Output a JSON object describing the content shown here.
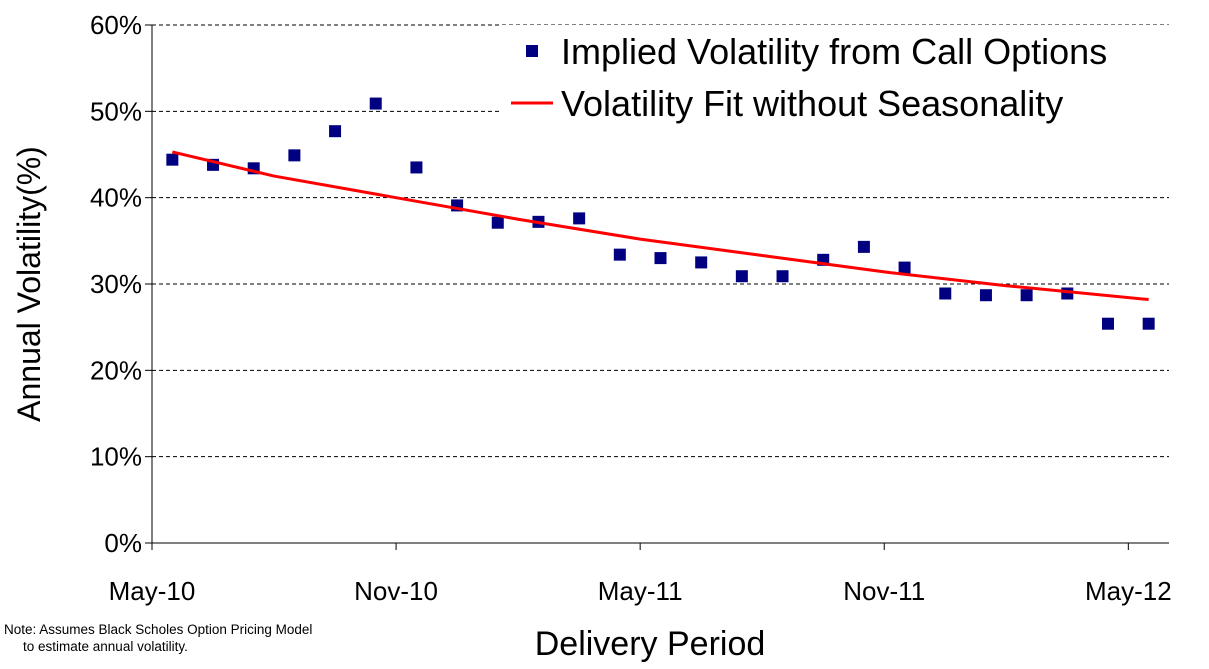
{
  "chart_data": {
    "type": "scatter_line",
    "xlabel": "Delivery Period",
    "ylabel": "Annual Volatility(%)",
    "note": [
      "Note: Assumes Black Scholes Option Pricing Model",
      "to estimate annual volatility."
    ],
    "xlim": [
      0,
      25
    ],
    "xticks": [
      {
        "value": 0,
        "label": "May-10"
      },
      {
        "value": 6,
        "label": "Nov-10"
      },
      {
        "value": 12,
        "label": "May-11"
      },
      {
        "value": 18,
        "label": "Nov-11"
      },
      {
        "value": 24,
        "label": "May-12"
      }
    ],
    "ylim": [
      0,
      60
    ],
    "yticks": [
      {
        "value": 0,
        "label": "0%"
      },
      {
        "value": 10,
        "label": "10%"
      },
      {
        "value": 20,
        "label": "20%"
      },
      {
        "value": 30,
        "label": "30%"
      },
      {
        "value": 40,
        "label": "40%"
      },
      {
        "value": 50,
        "label": "50%"
      },
      {
        "value": 60,
        "label": "60%"
      }
    ],
    "grid": true,
    "legend": "top-right",
    "series": [
      {
        "name": "Implied Volatility from Call Options",
        "kind": "markers",
        "color": "#000080",
        "x": [
          0.5,
          1.5,
          2.5,
          3.5,
          4.5,
          5.5,
          6.5,
          7.5,
          8.5,
          9.5,
          10.5,
          11.5,
          12.5,
          13.5,
          14.5,
          15.5,
          16.5,
          17.5,
          18.5,
          19.5,
          20.5,
          21.5,
          22.5,
          23.5,
          24.5
        ],
        "values": [
          44.4,
          43.8,
          43.4,
          44.9,
          47.7,
          50.9,
          43.5,
          39.1,
          37.1,
          37.2,
          37.6,
          33.4,
          33.0,
          32.5,
          30.9,
          30.9,
          32.8,
          34.3,
          31.9,
          28.9,
          28.7,
          28.7,
          28.9,
          25.4,
          25.4
        ]
      },
      {
        "name": "Volatility Fit without Seasonality",
        "kind": "line",
        "color": "#ff0000",
        "x": [
          0.5,
          3,
          6,
          9,
          12,
          15,
          18,
          21,
          24.5
        ],
        "values": [
          45.3,
          42.5,
          40.0,
          37.5,
          35.2,
          33.3,
          31.4,
          29.8,
          28.2
        ]
      }
    ]
  }
}
